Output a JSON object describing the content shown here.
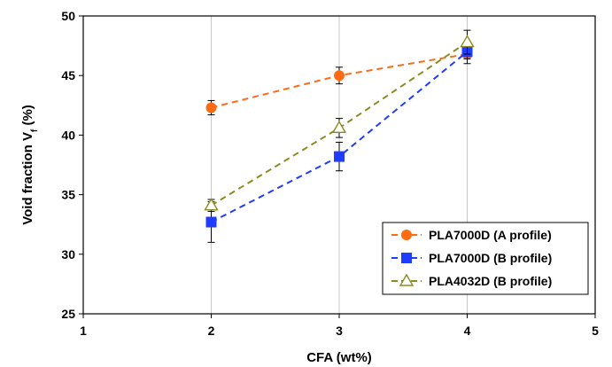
{
  "chart_data": {
    "type": "scatter",
    "xlabel": "CFA (wt%)",
    "ylabel": {
      "main": "Void fraction V",
      "sub": "f",
      "suffix": " (%)"
    },
    "xlim": [
      1,
      5
    ],
    "ylim": [
      25,
      50
    ],
    "xticks": [
      "1",
      "2",
      "3",
      "4",
      "5"
    ],
    "yticks": [
      "25",
      "30",
      "35",
      "40",
      "45",
      "50"
    ],
    "grid": {
      "x": true,
      "y": false
    },
    "legend_position": "bottom-right",
    "series": [
      {
        "name": "PLA7000D (A profile)",
        "color": "#ff6a13",
        "marker": "circle",
        "x": [
          2,
          3,
          4
        ],
        "y": [
          42.3,
          45.0,
          46.8
        ],
        "err": [
          0.6,
          0.7,
          0.8
        ]
      },
      {
        "name": "PLA7000D (B profile)",
        "color": "#1f3cff",
        "marker": "square",
        "x": [
          2,
          3,
          4
        ],
        "y": [
          32.7,
          38.2,
          47.0
        ],
        "err": [
          1.7,
          1.2,
          0.6
        ]
      },
      {
        "name": "PLA4032D (B profile)",
        "color": "#8b8b1f",
        "marker": "triangle-open",
        "x": [
          2,
          3,
          4
        ],
        "y": [
          34.1,
          40.6,
          47.8
        ],
        "err": [
          0.5,
          0.8,
          1.0
        ]
      }
    ]
  }
}
